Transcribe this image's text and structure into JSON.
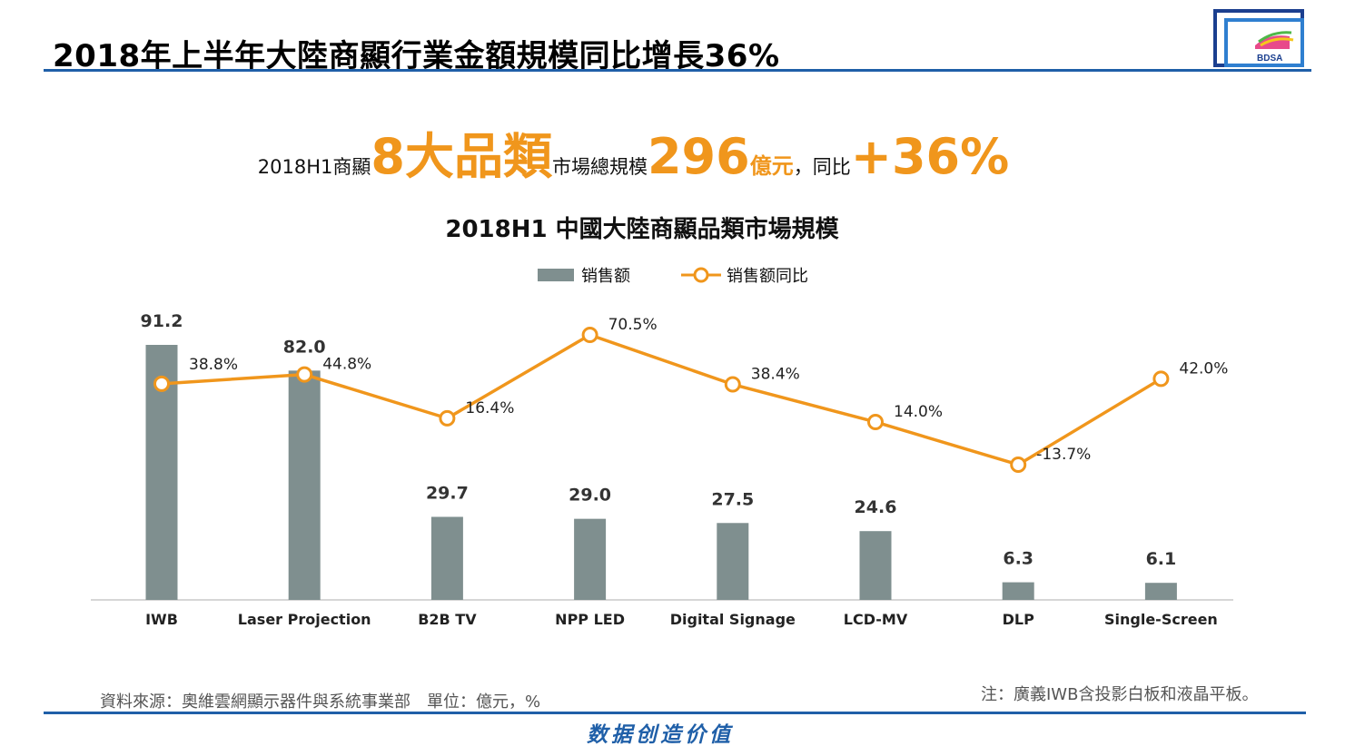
{
  "header": {
    "title": "2018年上半年大陸商顯行業金額規模同比增長36%",
    "logo_text": "BDSA"
  },
  "headline": {
    "prefix": "2018H1商顯",
    "categories_highlight": "8大品類",
    "middle": "市場總規模",
    "total_value": "296",
    "unit": "億元",
    "yoy_label": "，同比",
    "yoy_value": "+36%"
  },
  "colors": {
    "accent": "#f0961c",
    "bar": "#7f8f8f",
    "rule": "#1f5fa8",
    "slogan": "#1f5fa8"
  },
  "chart_data": {
    "type": "bar",
    "title": "2018H1 中國大陸商顯品類市場規模",
    "categories": [
      "IWB",
      "Laser Projection",
      "B2B TV",
      "NPP LED",
      "Digital Signage",
      "LCD-MV",
      "DLP",
      "Single-Screen"
    ],
    "series": [
      {
        "name": "销售额",
        "type": "bar",
        "values": [
          91.2,
          82.0,
          29.7,
          29.0,
          27.5,
          24.6,
          6.3,
          6.1
        ],
        "labels": [
          "91.2",
          "82.0",
          "29.7",
          "29.0",
          "27.5",
          "24.6",
          "6.3",
          "6.1"
        ]
      },
      {
        "name": "销售额同比",
        "type": "line",
        "values": [
          38.8,
          44.8,
          16.4,
          70.5,
          38.4,
          14.0,
          -13.7,
          42.0
        ],
        "labels": [
          "38.8%",
          "44.8%",
          "16.4%",
          "70.5%",
          "38.4%",
          "14.0%",
          "-13.7%",
          "42.0%"
        ]
      }
    ],
    "bar_axis_range": [
      0,
      91.2
    ],
    "line_axis_range": [
      -13.7,
      70.5
    ],
    "legend_position": "top-center",
    "grid": false
  },
  "footer": {
    "source": "資料來源：奧維雲網顯示器件與系統事業部　單位：億元，%",
    "note": "注：廣義IWB含投影白板和液晶平板。",
    "slogan": "数据创造价值"
  }
}
